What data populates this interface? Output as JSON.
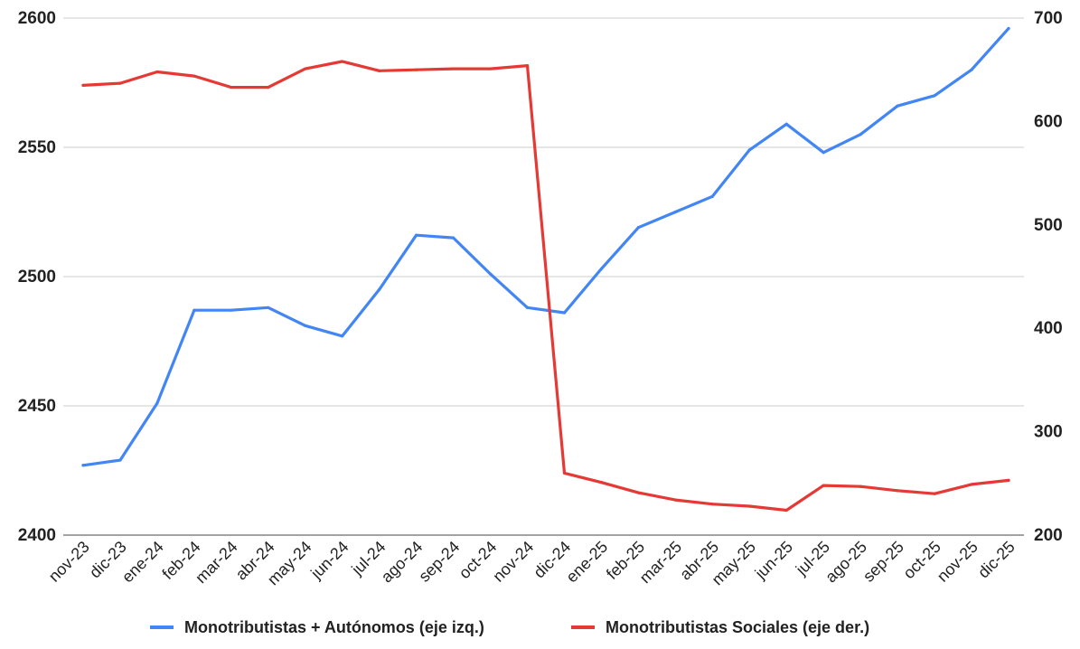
{
  "chart_data": {
    "type": "line",
    "title": "",
    "xlabel": "",
    "ylabel": "",
    "categories": [
      "nov-23",
      "dic-23",
      "ene-24",
      "feb-24",
      "mar-24",
      "abr-24",
      "may-24",
      "jun-24",
      "jul-24",
      "ago-24",
      "sep-24",
      "oct-24",
      "nov-24",
      "dic-24",
      "ene-25",
      "feb-25",
      "mar-25",
      "abr-25",
      "may-25",
      "jun-25",
      "jul-25",
      "ago-25",
      "sep-25",
      "oct-25",
      "nov-25",
      "dic-25"
    ],
    "y_left": {
      "min": 2400,
      "max": 2600,
      "ticks": [
        2400,
        2450,
        2500,
        2550,
        2600
      ]
    },
    "y_right": {
      "min": 200,
      "max": 700,
      "ticks": [
        200,
        300,
        400,
        500,
        600,
        700
      ]
    },
    "grid": true,
    "legend_position": "bottom",
    "series": [
      {
        "name": "Monotributistas + Autónomos (eje izq.)",
        "axis": "left",
        "color": "#4285F4",
        "values": [
          2427,
          2429,
          2451,
          2487,
          2487,
          2488,
          2481,
          2477,
          2495,
          2516,
          2515,
          2501,
          2488,
          2486,
          2503,
          2519,
          2525,
          2531,
          2549,
          2559,
          2548,
          2555,
          2566,
          2570,
          2580,
          2596
        ]
      },
      {
        "name": "Monotributistas Sociales (eje der.)",
        "axis": "right",
        "color": "#E53935",
        "values": [
          635,
          637,
          648,
          644,
          633,
          633,
          651,
          658,
          649,
          650,
          651,
          651,
          654,
          260,
          251,
          241,
          234,
          230,
          228,
          224,
          248,
          247,
          243,
          240,
          249,
          253
        ]
      }
    ]
  }
}
